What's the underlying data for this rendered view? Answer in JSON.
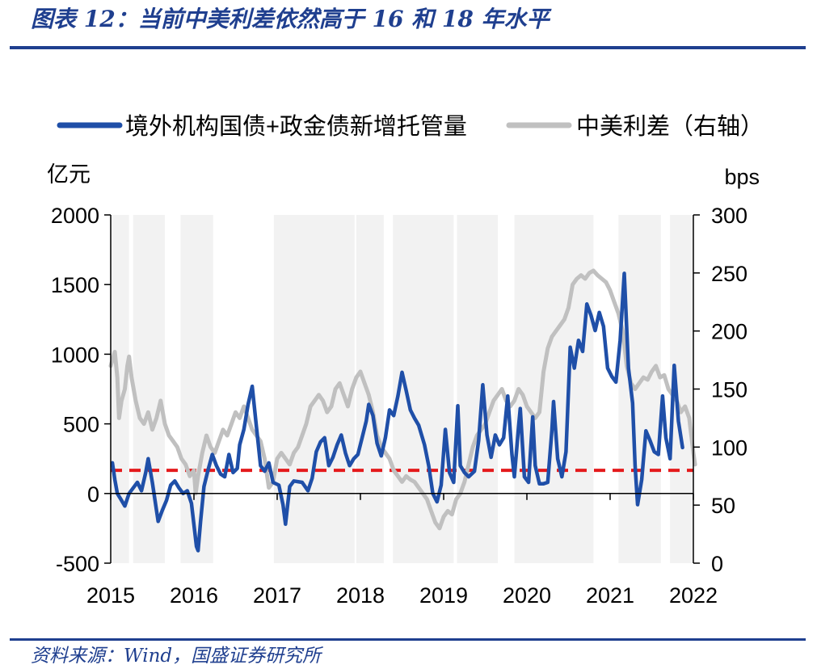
{
  "header": {
    "title": "图表 12：当前中美利差依然高于 16 和 18 年水平"
  },
  "footer": {
    "source": "资料来源：Wind，国盛证券研究所"
  },
  "chart_data": {
    "type": "line",
    "title": "图表 12：当前中美利差依然高于 16 和 18 年水平",
    "left_axis": {
      "label": "亿元",
      "ylim": [
        -500,
        2000
      ],
      "ticks": [
        "2000",
        "1500",
        "1000",
        "500",
        "0",
        "-500"
      ]
    },
    "right_axis": {
      "label": "bps",
      "ylim": [
        0,
        300
      ],
      "ticks": [
        "300",
        "250",
        "200",
        "150",
        "100",
        "50",
        "0"
      ]
    },
    "x_axis": {
      "xlim": [
        2015.0,
        2022.0
      ],
      "ticks": [
        "2015",
        "2016",
        "2017",
        "2018",
        "2019",
        "2020",
        "2021",
        "2022"
      ]
    },
    "legend": {
      "placement": "top"
    },
    "shaded_bands": [
      [
        2015.0,
        2015.22
      ],
      [
        2015.27,
        2015.65
      ],
      [
        2015.84,
        2016.23
      ],
      [
        2016.96,
        2017.93
      ],
      [
        2017.95,
        2018.28
      ],
      [
        2018.39,
        2019.12
      ],
      [
        2019.16,
        2019.65
      ],
      [
        2019.85,
        2020.8
      ],
      [
        2021.1,
        2021.61
      ],
      [
        2021.72,
        2022.0
      ]
    ],
    "reference_line": {
      "axis": "right",
      "value": 80,
      "color": "#e41a1c",
      "style": "dashed"
    },
    "series": [
      {
        "name": "境外机构国债+政金债新增托管量",
        "axis": "left",
        "color": "#1f4fa8",
        "points": [
          [
            2015.02,
            220
          ],
          [
            2015.05,
            100
          ],
          [
            2015.08,
            0
          ],
          [
            2015.12,
            -40
          ],
          [
            2015.17,
            -90
          ],
          [
            2015.22,
            0
          ],
          [
            2015.27,
            40
          ],
          [
            2015.32,
            80
          ],
          [
            2015.37,
            20
          ],
          [
            2015.42,
            150
          ],
          [
            2015.45,
            250
          ],
          [
            2015.5,
            80
          ],
          [
            2015.57,
            -200
          ],
          [
            2015.62,
            -120
          ],
          [
            2015.67,
            -50
          ],
          [
            2015.72,
            60
          ],
          [
            2015.77,
            90
          ],
          [
            2015.82,
            40
          ],
          [
            2015.87,
            0
          ],
          [
            2015.92,
            20
          ],
          [
            2015.97,
            -70
          ],
          [
            2016.03,
            -380
          ],
          [
            2016.05,
            -410
          ],
          [
            2016.08,
            -200
          ],
          [
            2016.12,
            50
          ],
          [
            2016.17,
            170
          ],
          [
            2016.22,
            280
          ],
          [
            2016.27,
            200
          ],
          [
            2016.32,
            140
          ],
          [
            2016.37,
            120
          ],
          [
            2016.42,
            280
          ],
          [
            2016.47,
            150
          ],
          [
            2016.52,
            180
          ],
          [
            2016.55,
            350
          ],
          [
            2016.6,
            460
          ],
          [
            2016.65,
            640
          ],
          [
            2016.7,
            770
          ],
          [
            2016.75,
            480
          ],
          [
            2016.8,
            200
          ],
          [
            2016.85,
            160
          ],
          [
            2016.9,
            220
          ],
          [
            2016.95,
            80
          ],
          [
            2017.02,
            60
          ],
          [
            2017.07,
            -80
          ],
          [
            2017.1,
            -220
          ],
          [
            2017.15,
            50
          ],
          [
            2017.2,
            90
          ],
          [
            2017.3,
            80
          ],
          [
            2017.37,
            20
          ],
          [
            2017.42,
            110
          ],
          [
            2017.47,
            300
          ],
          [
            2017.52,
            370
          ],
          [
            2017.57,
            400
          ],
          [
            2017.62,
            200
          ],
          [
            2017.67,
            260
          ],
          [
            2017.72,
            350
          ],
          [
            2017.77,
            420
          ],
          [
            2017.82,
            290
          ],
          [
            2017.87,
            200
          ],
          [
            2017.92,
            250
          ],
          [
            2017.97,
            280
          ],
          [
            2018.02,
            400
          ],
          [
            2018.07,
            520
          ],
          [
            2018.1,
            640
          ],
          [
            2018.15,
            560
          ],
          [
            2018.2,
            360
          ],
          [
            2018.25,
            270
          ],
          [
            2018.3,
            400
          ],
          [
            2018.35,
            600
          ],
          [
            2018.4,
            560
          ],
          [
            2018.45,
            700
          ],
          [
            2018.5,
            870
          ],
          [
            2018.55,
            740
          ],
          [
            2018.6,
            600
          ],
          [
            2018.65,
            540
          ],
          [
            2018.7,
            490
          ],
          [
            2018.77,
            350
          ],
          [
            2018.82,
            200
          ],
          [
            2018.87,
            0
          ],
          [
            2018.92,
            -60
          ],
          [
            2018.97,
            60
          ],
          [
            2019.02,
            460
          ],
          [
            2019.07,
            150
          ],
          [
            2019.12,
            80
          ],
          [
            2019.17,
            630
          ],
          [
            2019.2,
            200
          ],
          [
            2019.25,
            150
          ],
          [
            2019.3,
            120
          ],
          [
            2019.37,
            160
          ],
          [
            2019.42,
            380
          ],
          [
            2019.47,
            780
          ],
          [
            2019.52,
            420
          ],
          [
            2019.57,
            260
          ],
          [
            2019.62,
            420
          ],
          [
            2019.67,
            350
          ],
          [
            2019.72,
            400
          ],
          [
            2019.77,
            700
          ],
          [
            2019.82,
            280
          ],
          [
            2019.85,
            120
          ],
          [
            2019.9,
            480
          ],
          [
            2019.92,
            610
          ],
          [
            2019.97,
            120
          ],
          [
            2020.02,
            80
          ],
          [
            2020.07,
            550
          ],
          [
            2020.1,
            200
          ],
          [
            2020.15,
            70
          ],
          [
            2020.2,
            70
          ],
          [
            2020.25,
            80
          ],
          [
            2020.3,
            450
          ],
          [
            2020.32,
            660
          ],
          [
            2020.37,
            250
          ],
          [
            2020.42,
            120
          ],
          [
            2020.47,
            300
          ],
          [
            2020.52,
            1050
          ],
          [
            2020.57,
            900
          ],
          [
            2020.62,
            1100
          ],
          [
            2020.67,
            1020
          ],
          [
            2020.72,
            1360
          ],
          [
            2020.77,
            1280
          ],
          [
            2020.82,
            1170
          ],
          [
            2020.87,
            1300
          ],
          [
            2020.92,
            1200
          ],
          [
            2020.97,
            900
          ],
          [
            2021.02,
            840
          ],
          [
            2021.07,
            800
          ],
          [
            2021.12,
            1100
          ],
          [
            2021.17,
            1580
          ],
          [
            2021.22,
            900
          ],
          [
            2021.27,
            650
          ],
          [
            2021.3,
            200
          ],
          [
            2021.33,
            -80
          ],
          [
            2021.38,
            100
          ],
          [
            2021.43,
            450
          ],
          [
            2021.48,
            380
          ],
          [
            2021.53,
            300
          ],
          [
            2021.58,
            280
          ],
          [
            2021.63,
            700
          ],
          [
            2021.67,
            400
          ],
          [
            2021.72,
            250
          ],
          [
            2021.77,
            920
          ],
          [
            2021.82,
            520
          ],
          [
            2021.87,
            330
          ]
        ]
      },
      {
        "name": "中美利差（右轴）",
        "axis": "right",
        "color": "#c0c0c0",
        "points": [
          [
            2015.0,
            170
          ],
          [
            2015.02,
            175
          ],
          [
            2015.05,
            182
          ],
          [
            2015.08,
            160
          ],
          [
            2015.1,
            125
          ],
          [
            2015.13,
            140
          ],
          [
            2015.17,
            150
          ],
          [
            2015.2,
            170
          ],
          [
            2015.22,
            178
          ],
          [
            2015.25,
            160
          ],
          [
            2015.3,
            140
          ],
          [
            2015.35,
            125
          ],
          [
            2015.4,
            120
          ],
          [
            2015.45,
            130
          ],
          [
            2015.5,
            115
          ],
          [
            2015.55,
            125
          ],
          [
            2015.6,
            140
          ],
          [
            2015.65,
            120
          ],
          [
            2015.7,
            110
          ],
          [
            2015.75,
            105
          ],
          [
            2015.8,
            100
          ],
          [
            2015.85,
            90
          ],
          [
            2015.9,
            85
          ],
          [
            2015.95,
            75
          ],
          [
            2016.0,
            80
          ],
          [
            2016.02,
            60
          ],
          [
            2016.05,
            75
          ],
          [
            2016.1,
            95
          ],
          [
            2016.15,
            110
          ],
          [
            2016.2,
            100
          ],
          [
            2016.25,
            95
          ],
          [
            2016.3,
            105
          ],
          [
            2016.35,
            115
          ],
          [
            2016.4,
            110
          ],
          [
            2016.45,
            120
          ],
          [
            2016.5,
            130
          ],
          [
            2016.55,
            125
          ],
          [
            2016.6,
            135
          ],
          [
            2016.65,
            125
          ],
          [
            2016.7,
            115
          ],
          [
            2016.75,
            110
          ],
          [
            2016.8,
            105
          ],
          [
            2016.85,
            90
          ],
          [
            2016.9,
            65
          ],
          [
            2016.95,
            70
          ],
          [
            2017.0,
            90
          ],
          [
            2017.05,
            95
          ],
          [
            2017.1,
            90
          ],
          [
            2017.15,
            85
          ],
          [
            2017.2,
            95
          ],
          [
            2017.25,
            100
          ],
          [
            2017.3,
            110
          ],
          [
            2017.35,
            120
          ],
          [
            2017.4,
            135
          ],
          [
            2017.45,
            140
          ],
          [
            2017.5,
            145
          ],
          [
            2017.55,
            140
          ],
          [
            2017.6,
            130
          ],
          [
            2017.65,
            135
          ],
          [
            2017.7,
            150
          ],
          [
            2017.75,
            155
          ],
          [
            2017.8,
            145
          ],
          [
            2017.85,
            135
          ],
          [
            2017.9,
            150
          ],
          [
            2017.95,
            160
          ],
          [
            2018.0,
            165
          ],
          [
            2018.05,
            155
          ],
          [
            2018.1,
            145
          ],
          [
            2018.15,
            130
          ],
          [
            2018.2,
            110
          ],
          [
            2018.25,
            100
          ],
          [
            2018.3,
            95
          ],
          [
            2018.35,
            90
          ],
          [
            2018.4,
            80
          ],
          [
            2018.45,
            75
          ],
          [
            2018.5,
            70
          ],
          [
            2018.55,
            75
          ],
          [
            2018.6,
            72
          ],
          [
            2018.65,
            70
          ],
          [
            2018.7,
            65
          ],
          [
            2018.75,
            60
          ],
          [
            2018.8,
            55
          ],
          [
            2018.85,
            45
          ],
          [
            2018.9,
            35
          ],
          [
            2018.95,
            30
          ],
          [
            2019.0,
            40
          ],
          [
            2019.05,
            45
          ],
          [
            2019.1,
            42
          ],
          [
            2019.15,
            55
          ],
          [
            2019.2,
            60
          ],
          [
            2019.25,
            70
          ],
          [
            2019.3,
            85
          ],
          [
            2019.35,
            100
          ],
          [
            2019.4,
            110
          ],
          [
            2019.45,
            115
          ],
          [
            2019.5,
            120
          ],
          [
            2019.55,
            130
          ],
          [
            2019.6,
            140
          ],
          [
            2019.65,
            145
          ],
          [
            2019.7,
            150
          ],
          [
            2019.75,
            140
          ],
          [
            2019.8,
            135
          ],
          [
            2019.85,
            140
          ],
          [
            2019.9,
            150
          ],
          [
            2019.95,
            145
          ],
          [
            2020.0,
            135
          ],
          [
            2020.05,
            130
          ],
          [
            2020.1,
            125
          ],
          [
            2020.15,
            130
          ],
          [
            2020.2,
            165
          ],
          [
            2020.25,
            185
          ],
          [
            2020.3,
            195
          ],
          [
            2020.35,
            200
          ],
          [
            2020.4,
            205
          ],
          [
            2020.45,
            210
          ],
          [
            2020.5,
            220
          ],
          [
            2020.55,
            240
          ],
          [
            2020.6,
            245
          ],
          [
            2020.65,
            248
          ],
          [
            2020.7,
            245
          ],
          [
            2020.75,
            250
          ],
          [
            2020.8,
            252
          ],
          [
            2020.85,
            248
          ],
          [
            2020.9,
            245
          ],
          [
            2020.95,
            242
          ],
          [
            2021.0,
            235
          ],
          [
            2021.05,
            225
          ],
          [
            2021.1,
            215
          ],
          [
            2021.15,
            200
          ],
          [
            2021.2,
            170
          ],
          [
            2021.25,
            155
          ],
          [
            2021.3,
            150
          ],
          [
            2021.35,
            155
          ],
          [
            2021.4,
            160
          ],
          [
            2021.45,
            158
          ],
          [
            2021.5,
            165
          ],
          [
            2021.55,
            170
          ],
          [
            2021.6,
            160
          ],
          [
            2021.65,
            162
          ],
          [
            2021.7,
            150
          ],
          [
            2021.75,
            145
          ],
          [
            2021.8,
            140
          ],
          [
            2021.85,
            130
          ],
          [
            2021.9,
            135
          ],
          [
            2021.95,
            125
          ],
          [
            2022.0,
            95
          ],
          [
            2022.02,
            85
          ]
        ]
      }
    ]
  }
}
